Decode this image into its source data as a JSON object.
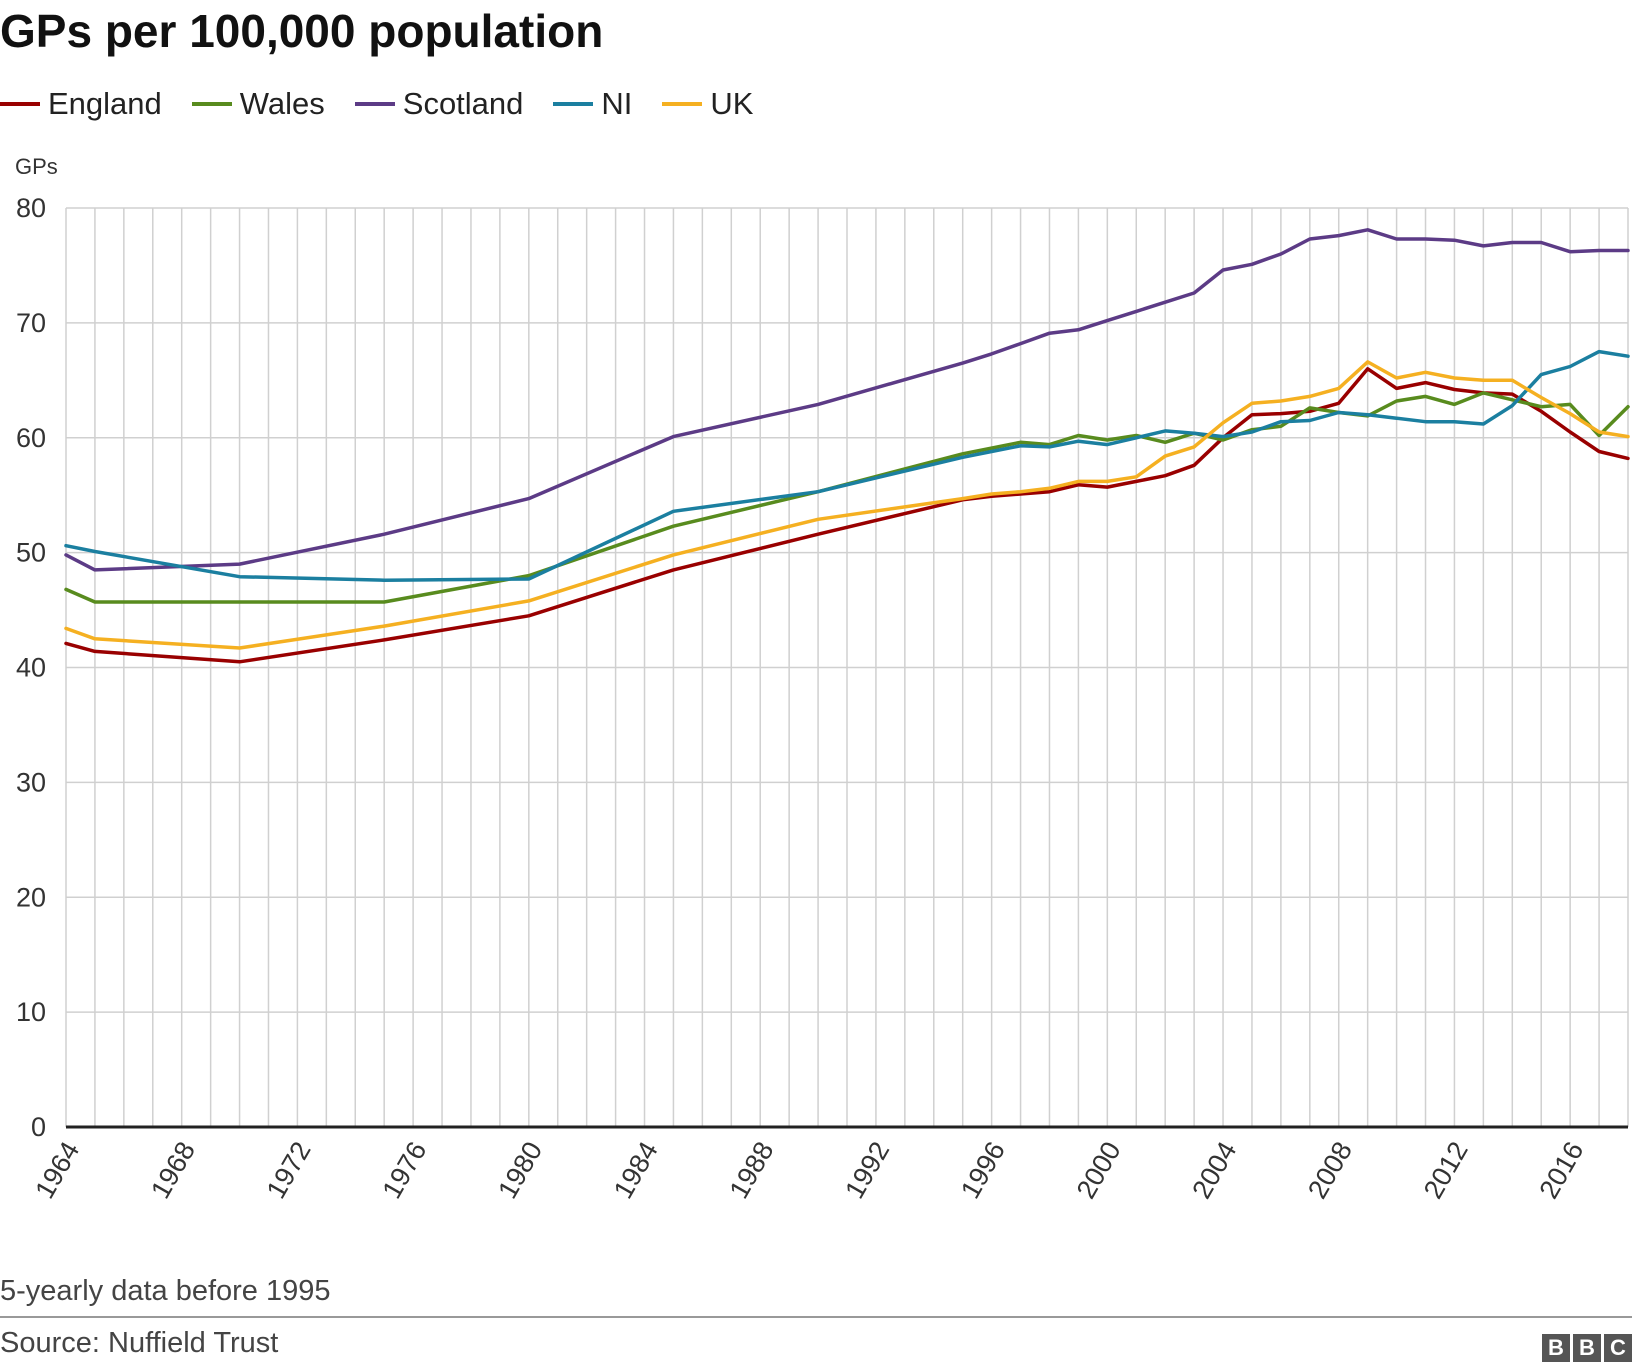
{
  "header": {
    "title": "GPs per 100,000 population"
  },
  "footer": {
    "note": "5-yearly data before 1995",
    "source": "Source: Nuffield Trust",
    "logo_letters": [
      "B",
      "B",
      "C"
    ]
  },
  "chart_data": {
    "type": "line",
    "title": "GPs per 100,000 population",
    "ylabel": "GPs",
    "xlabel": "",
    "ylim": [
      0,
      80
    ],
    "xlim": [
      1964,
      2018
    ],
    "yticks": [
      "0",
      "10",
      "20",
      "30",
      "40",
      "50",
      "60",
      "70",
      "80"
    ],
    "xticks": [
      "1964",
      "1968",
      "1972",
      "1976",
      "1980",
      "1984",
      "1988",
      "1992",
      "1996",
      "2000",
      "2004",
      "2008",
      "2012",
      "2016"
    ],
    "grid": true,
    "legend_position": "top-left",
    "series": [
      {
        "name": "England",
        "color": "#990000",
        "points": [
          [
            1964,
            42.1
          ],
          [
            1965,
            41.4
          ],
          [
            1970,
            40.5
          ],
          [
            1975,
            42.4
          ],
          [
            1980,
            44.5
          ],
          [
            1985,
            48.5
          ],
          [
            1990,
            51.6
          ],
          [
            1995,
            54.6
          ],
          [
            1996,
            54.9
          ],
          [
            1997,
            55.1
          ],
          [
            1998,
            55.3
          ],
          [
            1999,
            55.9
          ],
          [
            2000,
            55.7
          ],
          [
            2001,
            56.2
          ],
          [
            2002,
            56.7
          ],
          [
            2003,
            57.6
          ],
          [
            2004,
            60.0
          ],
          [
            2005,
            62.0
          ],
          [
            2006,
            62.1
          ],
          [
            2007,
            62.3
          ],
          [
            2008,
            63.0
          ],
          [
            2009,
            66.0
          ],
          [
            2010,
            64.3
          ],
          [
            2011,
            64.8
          ],
          [
            2012,
            64.2
          ],
          [
            2013,
            63.9
          ],
          [
            2014,
            63.8
          ],
          [
            2015,
            62.3
          ],
          [
            2016,
            60.5
          ],
          [
            2017,
            58.8
          ],
          [
            2018,
            58.2
          ]
        ]
      },
      {
        "name": "Wales",
        "color": "#588b1e",
        "points": [
          [
            1964,
            46.8
          ],
          [
            1965,
            45.7
          ],
          [
            1970,
            45.7
          ],
          [
            1975,
            45.7
          ],
          [
            1980,
            48.0
          ],
          [
            1985,
            52.3
          ],
          [
            1990,
            55.3
          ],
          [
            1995,
            58.6
          ],
          [
            1996,
            59.1
          ],
          [
            1997,
            59.6
          ],
          [
            1998,
            59.4
          ],
          [
            1999,
            60.2
          ],
          [
            2000,
            59.8
          ],
          [
            2001,
            60.2
          ],
          [
            2002,
            59.6
          ],
          [
            2003,
            60.4
          ],
          [
            2004,
            59.8
          ],
          [
            2005,
            60.7
          ],
          [
            2006,
            61.0
          ],
          [
            2007,
            62.6
          ],
          [
            2008,
            62.2
          ],
          [
            2009,
            61.9
          ],
          [
            2010,
            63.2
          ],
          [
            2011,
            63.6
          ],
          [
            2012,
            62.9
          ],
          [
            2013,
            63.9
          ],
          [
            2014,
            63.3
          ],
          [
            2015,
            62.7
          ],
          [
            2016,
            62.9
          ],
          [
            2017,
            60.2
          ],
          [
            2018,
            62.7
          ]
        ]
      },
      {
        "name": "Scotland",
        "color": "#5c3b86",
        "points": [
          [
            1964,
            49.8
          ],
          [
            1965,
            48.5
          ],
          [
            1970,
            49.0
          ],
          [
            1975,
            51.6
          ],
          [
            1980,
            54.7
          ],
          [
            1985,
            60.1
          ],
          [
            1990,
            62.9
          ],
          [
            1995,
            66.5
          ],
          [
            1996,
            67.3
          ],
          [
            1997,
            68.2
          ],
          [
            1998,
            69.1
          ],
          [
            1999,
            69.4
          ],
          [
            2000,
            70.2
          ],
          [
            2001,
            71.0
          ],
          [
            2002,
            71.8
          ],
          [
            2003,
            72.6
          ],
          [
            2004,
            74.6
          ],
          [
            2005,
            75.1
          ],
          [
            2006,
            76.0
          ],
          [
            2007,
            77.3
          ],
          [
            2008,
            77.6
          ],
          [
            2009,
            78.1
          ],
          [
            2010,
            77.3
          ],
          [
            2011,
            77.3
          ],
          [
            2012,
            77.2
          ],
          [
            2013,
            76.7
          ],
          [
            2014,
            77.0
          ],
          [
            2015,
            77.0
          ],
          [
            2016,
            76.2
          ],
          [
            2017,
            76.3
          ],
          [
            2018,
            76.3
          ]
        ]
      },
      {
        "name": "NI",
        "color": "#1b7fa0",
        "points": [
          [
            1964,
            50.6
          ],
          [
            1965,
            50.1
          ],
          [
            1970,
            47.9
          ],
          [
            1975,
            47.6
          ],
          [
            1980,
            47.7
          ],
          [
            1985,
            53.6
          ],
          [
            1990,
            55.3
          ],
          [
            1995,
            58.3
          ],
          [
            1996,
            58.8
          ],
          [
            1997,
            59.3
          ],
          [
            1998,
            59.2
          ],
          [
            1999,
            59.7
          ],
          [
            2000,
            59.4
          ],
          [
            2001,
            60.0
          ],
          [
            2002,
            60.6
          ],
          [
            2003,
            60.4
          ],
          [
            2004,
            60.1
          ],
          [
            2005,
            60.5
          ],
          [
            2006,
            61.4
          ],
          [
            2007,
            61.5
          ],
          [
            2008,
            62.2
          ],
          [
            2009,
            62.0
          ],
          [
            2010,
            61.7
          ],
          [
            2011,
            61.4
          ],
          [
            2012,
            61.4
          ],
          [
            2013,
            61.2
          ],
          [
            2014,
            62.8
          ],
          [
            2015,
            65.5
          ],
          [
            2016,
            66.2
          ],
          [
            2017,
            67.5
          ],
          [
            2018,
            67.1
          ]
        ]
      },
      {
        "name": "UK",
        "color": "#f5b021",
        "points": [
          [
            1964,
            43.4
          ],
          [
            1965,
            42.5
          ],
          [
            1970,
            41.7
          ],
          [
            1975,
            43.6
          ],
          [
            1980,
            45.8
          ],
          [
            1985,
            49.8
          ],
          [
            1990,
            52.9
          ],
          [
            1995,
            54.7
          ],
          [
            1996,
            55.1
          ],
          [
            1997,
            55.3
          ],
          [
            1998,
            55.6
          ],
          [
            1999,
            56.2
          ],
          [
            2000,
            56.2
          ],
          [
            2001,
            56.6
          ],
          [
            2002,
            58.4
          ],
          [
            2003,
            59.2
          ],
          [
            2004,
            61.3
          ],
          [
            2005,
            63.0
          ],
          [
            2006,
            63.2
          ],
          [
            2007,
            63.6
          ],
          [
            2008,
            64.3
          ],
          [
            2009,
            66.6
          ],
          [
            2010,
            65.2
          ],
          [
            2011,
            65.7
          ],
          [
            2012,
            65.2
          ],
          [
            2013,
            65.0
          ],
          [
            2014,
            65.0
          ],
          [
            2015,
            63.5
          ],
          [
            2016,
            62.1
          ],
          [
            2017,
            60.5
          ],
          [
            2018,
            60.1
          ]
        ]
      }
    ]
  }
}
